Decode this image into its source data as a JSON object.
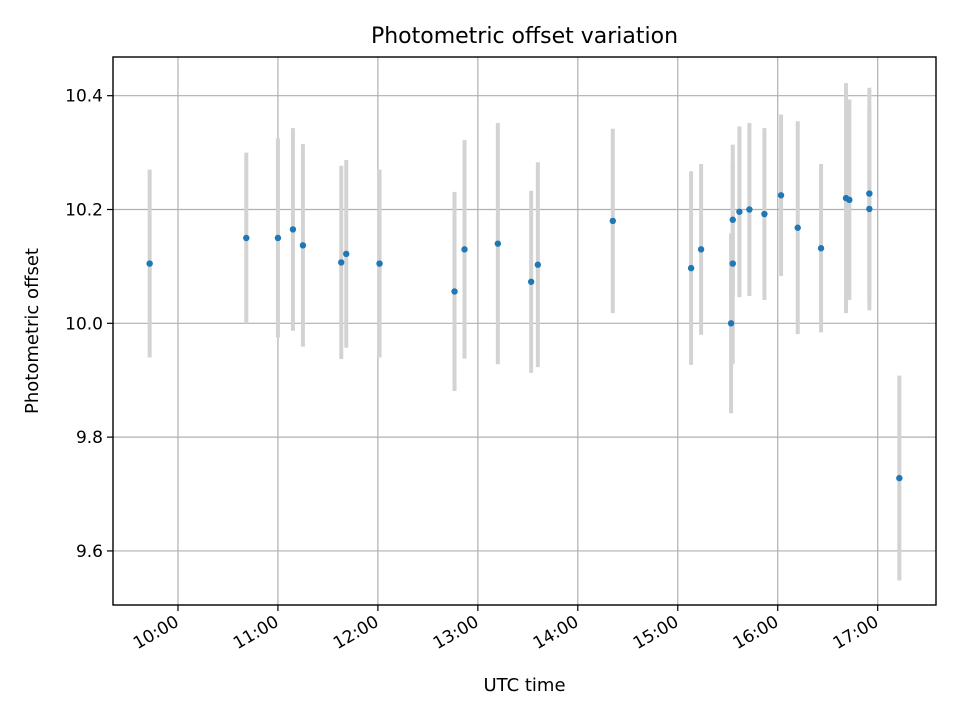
{
  "chart_data": {
    "type": "scatter",
    "title": "Photometric offset variation",
    "xlabel": "UTC time",
    "ylabel": "Photometric offset",
    "x_ticks": [
      "10:00",
      "11:00",
      "12:00",
      "13:00",
      "14:00",
      "15:00",
      "16:00",
      "17:00"
    ],
    "y_ticks": [
      "9.6",
      "9.8",
      "10.0",
      "10.2",
      "10.4"
    ],
    "y_tick_values": [
      9.6,
      9.8,
      10.0,
      10.2,
      10.4
    ],
    "xlim": [
      "09:21",
      "17:35"
    ],
    "ylim": [
      9.505,
      10.468
    ],
    "grid": true,
    "colors": {
      "point": "#1f77b4",
      "errorbar": "#d3d3d3"
    },
    "series": [
      {
        "points": [
          {
            "x": "09:43",
            "y": 10.105,
            "yerr": 0.165
          },
          {
            "x": "10:41",
            "y": 10.15,
            "yerr": 0.15
          },
          {
            "x": "11:00",
            "y": 10.15,
            "yerr": 0.175
          },
          {
            "x": "11:09",
            "y": 10.165,
            "yerr": 0.178
          },
          {
            "x": "11:15",
            "y": 10.137,
            "yerr": 0.178
          },
          {
            "x": "11:38",
            "y": 10.107,
            "yerr": 0.17
          },
          {
            "x": "11:41",
            "y": 10.122,
            "yerr": 0.165
          },
          {
            "x": "12:01",
            "y": 10.105,
            "yerr": 0.165
          },
          {
            "x": "12:46",
            "y": 10.056,
            "yerr": 0.175
          },
          {
            "x": "12:52",
            "y": 10.13,
            "yerr": 0.192
          },
          {
            "x": "13:12",
            "y": 10.14,
            "yerr": 0.212
          },
          {
            "x": "13:32",
            "y": 10.073,
            "yerr": 0.16
          },
          {
            "x": "13:36",
            "y": 10.103,
            "yerr": 0.18
          },
          {
            "x": "14:21",
            "y": 10.18,
            "yerr": 0.162
          },
          {
            "x": "15:08",
            "y": 10.097,
            "yerr": 0.17
          },
          {
            "x": "15:14",
            "y": 10.13,
            "yerr": 0.15
          },
          {
            "x": "15:32",
            "y": 10.0,
            "yerr": 0.158
          },
          {
            "x": "15:33",
            "y": 10.105,
            "yerr": 0.177
          },
          {
            "x": "15:33",
            "y": 10.182,
            "yerr": 0.132
          },
          {
            "x": "15:37",
            "y": 10.196,
            "yerr": 0.15
          },
          {
            "x": "15:43",
            "y": 10.2,
            "yerr": 0.152
          },
          {
            "x": "15:52",
            "y": 10.192,
            "yerr": 0.151
          },
          {
            "x": "16:02",
            "y": 10.225,
            "yerr": 0.142
          },
          {
            "x": "16:12",
            "y": 10.168,
            "yerr": 0.187
          },
          {
            "x": "16:26",
            "y": 10.132,
            "yerr": 0.148
          },
          {
            "x": "16:41",
            "y": 10.22,
            "yerr": 0.202
          },
          {
            "x": "16:43",
            "y": 10.217,
            "yerr": 0.176
          },
          {
            "x": "16:55",
            "y": 10.228,
            "yerr": 0.186
          },
          {
            "x": "16:55",
            "y": 10.201,
            "yerr": 0.178
          },
          {
            "x": "17:13",
            "y": 9.728,
            "yerr": 0.18
          }
        ]
      }
    ]
  }
}
